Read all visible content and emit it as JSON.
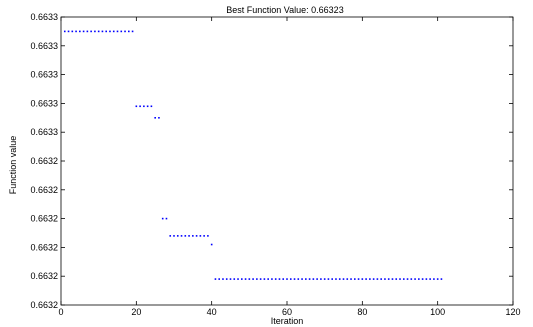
{
  "chart_data": {
    "type": "scatter",
    "title": "Best Function Value: 0.66323",
    "xlabel": "Iteration",
    "ylabel": "Function value",
    "xlim": [
      0,
      120
    ],
    "ylim": [
      0,
      10
    ],
    "grid": false,
    "marker_color": "#0000ff",
    "x_ticks": [
      {
        "value": 0,
        "label": "0"
      },
      {
        "value": 20,
        "label": "20"
      },
      {
        "value": 40,
        "label": "40"
      },
      {
        "value": 60,
        "label": "60"
      },
      {
        "value": 80,
        "label": "80"
      },
      {
        "value": 100,
        "label": "100"
      },
      {
        "value": 120,
        "label": "120"
      }
    ],
    "y_ticks": [
      {
        "value": 10,
        "label": "0.6633"
      },
      {
        "value": 9,
        "label": "0.6633"
      },
      {
        "value": 8,
        "label": "0.6633"
      },
      {
        "value": 7,
        "label": "0.6633"
      },
      {
        "value": 6,
        "label": "0.6633"
      },
      {
        "value": 5,
        "label": "0.6632"
      },
      {
        "value": 4,
        "label": "0.6632"
      },
      {
        "value": 3,
        "label": "0.6632"
      },
      {
        "value": 2,
        "label": "0.6632"
      },
      {
        "value": 1,
        "label": "0.6632"
      },
      {
        "value": 0,
        "label": "0.6632"
      }
    ],
    "series": [
      {
        "segments": [
          {
            "x_start": 1,
            "x_end": 19,
            "y": 9.5
          },
          {
            "x_start": 20,
            "x_end": 24,
            "y": 6.9
          },
          {
            "x_start": 25,
            "x_end": 26,
            "y": 6.5
          },
          {
            "x_start": 27,
            "x_end": 28,
            "y": 3.0
          },
          {
            "x_start": 29,
            "x_end": 39,
            "y": 2.4
          },
          {
            "x_start": 40,
            "x_end": 40,
            "y": 2.1
          },
          {
            "x_start": 41,
            "x_end": 101,
            "y": 0.9
          }
        ]
      }
    ]
  }
}
